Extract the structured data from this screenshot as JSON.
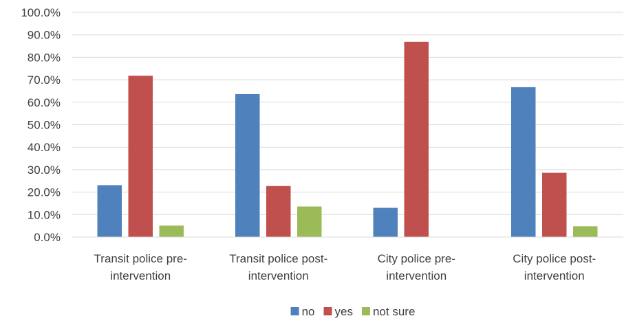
{
  "chart_data": {
    "type": "bar",
    "title": "",
    "xlabel": "",
    "ylabel": "",
    "categories": [
      [
        "Transit police pre-",
        "intervention"
      ],
      [
        "Transit police post-",
        "intervention"
      ],
      [
        "City police pre-",
        "intervention"
      ],
      [
        "City police post-",
        "intervention"
      ]
    ],
    "series": [
      {
        "name": "no",
        "color": "#4F81BD",
        "values": [
          23.1,
          63.6,
          13.0,
          66.7
        ]
      },
      {
        "name": "yes",
        "color": "#C0504D",
        "values": [
          71.8,
          22.7,
          86.9,
          28.6
        ]
      },
      {
        "name": "not sure",
        "color": "#9BBB59",
        "values": [
          5.1,
          13.6,
          0.0,
          4.8
        ]
      }
    ],
    "ylim": [
      0,
      100
    ],
    "ytick_step": 10,
    "ytick_labels": [
      "0.0%",
      "10.0%",
      "20.0%",
      "30.0%",
      "40.0%",
      "50.0%",
      "60.0%",
      "70.0%",
      "80.0%",
      "90.0%",
      "100.0%"
    ],
    "grid": true,
    "legend_position": "bottom"
  }
}
